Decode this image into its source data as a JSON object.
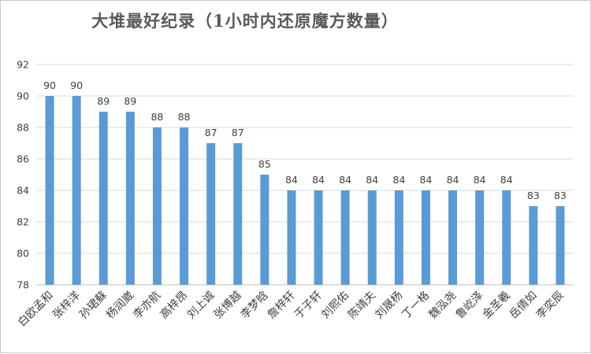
{
  "chart_data": {
    "type": "bar",
    "title": "大堆最好纪录（1小时内还原魔方数量）",
    "categories": [
      "白欧孟和",
      "张梓洋",
      "孙珺蘇",
      "杨润崴",
      "李亦航",
      "高梓昂",
      "刘上诚",
      "张博越",
      "李梦晗",
      "詹梓轩",
      "于子轩",
      "刘熙佑",
      "陈靖夫",
      "刘晟杨",
      "丁一格",
      "魏泓尧",
      "鲁屹泽",
      "金圣羲",
      "岳倩如",
      "李奕辰"
    ],
    "values": [
      90,
      90,
      89,
      89,
      88,
      88,
      87,
      87,
      85,
      84,
      84,
      84,
      84,
      84,
      84,
      84,
      84,
      84,
      83,
      83
    ],
    "ylim": [
      78,
      92
    ],
    "yticks": [
      78,
      80,
      82,
      84,
      86,
      88,
      90,
      92
    ],
    "grid": true,
    "legend": "none",
    "bar_color": "#5b9bd5",
    "xlabel": "",
    "ylabel": ""
  }
}
